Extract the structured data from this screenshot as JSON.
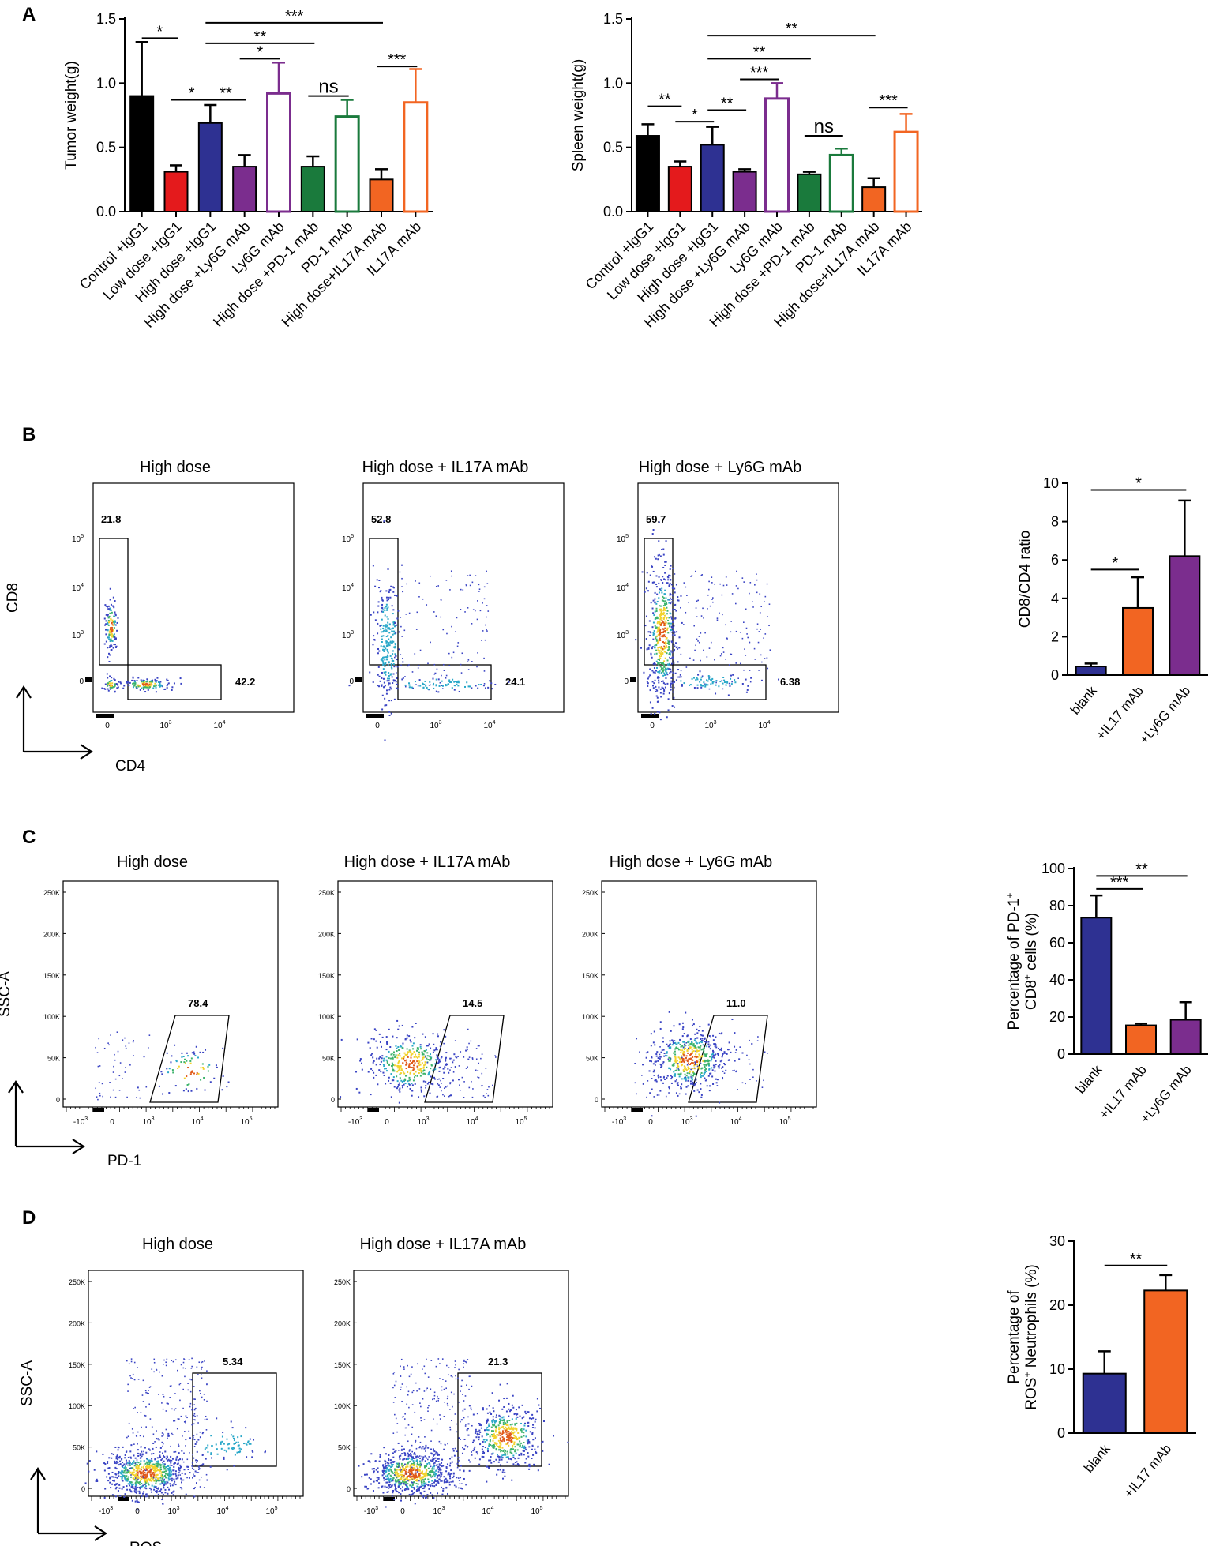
{
  "panel_labels": {
    "a": "A",
    "b": "B",
    "c": "C",
    "d": "D"
  },
  "colors": {
    "black": "#000000",
    "red": "#e41a1c",
    "blue": "#2e3192",
    "purple": "#7b2d8e",
    "green": "#1a7a3c",
    "orange": "#f26522",
    "dot_blue": "#3a44c4"
  },
  "chart_data": [
    {
      "id": "tumor",
      "type": "bar",
      "title": "",
      "xlabel": "",
      "ylabel": "Tumor weight(g)",
      "ylim": [
        0,
        1.5
      ],
      "yticks": [
        "0.0",
        "0.5",
        "1.0",
        "1.5"
      ],
      "categories": [
        "Control +IgG1",
        "Low dose +IgG1",
        "High dose +IgG1",
        "High dose +Ly6G mAb",
        "Ly6G mAb",
        "High dose +PD-1 mAb",
        "PD-1 mAb",
        "High dose+IL17A mAb",
        "IL17A mAb"
      ],
      "values": [
        0.9,
        0.31,
        0.69,
        0.35,
        0.92,
        0.35,
        0.74,
        0.25,
        0.85
      ],
      "errors": [
        0.42,
        0.05,
        0.14,
        0.09,
        0.24,
        0.08,
        0.13,
        0.08,
        0.26
      ],
      "fills": [
        "black",
        "red",
        "blue",
        "purple",
        "white",
        "green",
        "white",
        "orange",
        "white"
      ],
      "strokes": [
        "black",
        "black",
        "black",
        "black",
        "purple",
        "black",
        "green",
        "black",
        "orange"
      ],
      "annotations": [
        {
          "label": "*",
          "from": 0,
          "to": 1,
          "y": 1.35
        },
        {
          "label": "*",
          "from": 1,
          "to": 2,
          "y": 0.87
        },
        {
          "label": "**",
          "from": 2,
          "to": 3,
          "y": 0.87
        },
        {
          "label": "*",
          "from": 3,
          "to": 4,
          "y": 1.19
        },
        {
          "label": "**",
          "from": 2,
          "to": 5,
          "y": 1.31
        },
        {
          "label": "***",
          "from": 2,
          "to": 7,
          "y": 1.47
        },
        {
          "label": "ns",
          "from": 5,
          "to": 6,
          "y": 0.9
        },
        {
          "label": "***",
          "from": 7,
          "to": 8,
          "y": 1.13
        }
      ]
    },
    {
      "id": "spleen",
      "type": "bar",
      "title": "",
      "xlabel": "",
      "ylabel": "Spleen weight(g)",
      "ylim": [
        0,
        1.5
      ],
      "yticks": [
        "0.0",
        "0.5",
        "1.0",
        "1.5"
      ],
      "categories": [
        "Control +IgG1",
        "Low dose +IgG1",
        "High dose +IgG1",
        "High dose +Ly6G mAb",
        "Ly6G mAb",
        "High dose +PD-1 mAb",
        "PD-1 mAb",
        "High dose+IL17A mAb",
        "IL17A mAb"
      ],
      "values": [
        0.59,
        0.35,
        0.52,
        0.31,
        0.88,
        0.29,
        0.44,
        0.19,
        0.62
      ],
      "errors": [
        0.09,
        0.04,
        0.14,
        0.02,
        0.12,
        0.02,
        0.05,
        0.07,
        0.14
      ],
      "fills": [
        "black",
        "red",
        "blue",
        "purple",
        "white",
        "green",
        "white",
        "orange",
        "white"
      ],
      "strokes": [
        "black",
        "black",
        "black",
        "black",
        "purple",
        "black",
        "green",
        "black",
        "orange"
      ],
      "annotations": [
        {
          "label": "**",
          "from": 0,
          "to": 1,
          "y": 0.82
        },
        {
          "label": "*",
          "from": 1,
          "to": 2,
          "y": 0.7
        },
        {
          "label": "**",
          "from": 2,
          "to": 3,
          "y": 0.79
        },
        {
          "label": "***",
          "from": 3,
          "to": 4,
          "y": 1.03
        },
        {
          "label": "**",
          "from": 2,
          "to": 5,
          "y": 1.19
        },
        {
          "label": "**",
          "from": 2,
          "to": 7,
          "y": 1.37
        },
        {
          "label": "ns",
          "from": 5,
          "to": 6,
          "y": 0.59
        },
        {
          "label": "***",
          "from": 7,
          "to": 8,
          "y": 0.81
        }
      ]
    },
    {
      "id": "cd8cd4",
      "type": "bar",
      "title": "",
      "xlabel": "",
      "ylabel": "CD8/CD4 ratio",
      "ylim": [
        0,
        10
      ],
      "yticks": [
        "0",
        "2",
        "4",
        "6",
        "8",
        "10"
      ],
      "categories": [
        "blank",
        "+IL17 mAb",
        "+Ly6G mAb"
      ],
      "values": [
        0.45,
        3.5,
        6.2
      ],
      "errors": [
        0.15,
        1.6,
        2.9
      ],
      "fills": [
        "blue",
        "orange",
        "purple"
      ],
      "strokes": [
        "black",
        "black",
        "black"
      ],
      "annotations": [
        {
          "label": "*",
          "from": 0,
          "to": 1,
          "y": 5.5
        },
        {
          "label": "*",
          "from": 0,
          "to": 2,
          "y": 9.65
        }
      ]
    },
    {
      "id": "pd1",
      "type": "bar",
      "title": "",
      "xlabel": "",
      "ylabel_line1": "Percentage of PD-1",
      "ylabel_line2": "CD8",
      "ylabel_line2_suffix": "cells (%)",
      "superscript": "+",
      "ylim": [
        0,
        100
      ],
      "yticks": [
        "0",
        "20",
        "40",
        "60",
        "80",
        "100"
      ],
      "categories": [
        "blank",
        "+IL17 mAb",
        "+Ly6G mAb"
      ],
      "values": [
        73.5,
        15.5,
        18.5
      ],
      "errors": [
        12,
        1,
        9.5
      ],
      "fills": [
        "blue",
        "orange",
        "purple"
      ],
      "strokes": [
        "black",
        "black",
        "black"
      ],
      "annotations": [
        {
          "label": "***",
          "from": 0,
          "to": 1,
          "y": 89
        },
        {
          "label": "**",
          "from": 0,
          "to": 2,
          "y": 96
        }
      ]
    },
    {
      "id": "ros",
      "type": "bar",
      "title": "",
      "xlabel": "",
      "ylabel_line1": "Percentage of",
      "ylabel_line2": "ROS",
      "ylabel_line2_suffix": "Neutrophils (%)",
      "superscript": "+",
      "ylim": [
        0,
        30
      ],
      "yticks": [
        "0",
        "10",
        "20",
        "30"
      ],
      "categories": [
        "blank",
        "+IL17 mAb"
      ],
      "values": [
        9.3,
        22.3
      ],
      "errors": [
        3.5,
        2.4
      ],
      "fills": [
        "blue",
        "orange"
      ],
      "strokes": [
        "black",
        "black"
      ],
      "annotations": [
        {
          "label": "**",
          "from": 0,
          "to": 1,
          "y": 26.2
        }
      ]
    },
    {
      "id": "flow",
      "type": "scatter",
      "title": "",
      "xlabel": "",
      "ylabel": "",
      "rows": [
        {
          "id": "B",
          "titles": [
            "High dose",
            "High dose + IL17A mAb",
            "High dose + Ly6G mAb"
          ],
          "gates": [
            [
              "21.8",
              "42.2"
            ],
            [
              "52.8",
              "24.1"
            ],
            [
              "59.7",
              "6.38"
            ]
          ],
          "xticks": [
            "0",
            "10",
            "10"
          ],
          "xtick_exps": [
            "",
            "3",
            "4"
          ],
          "yticks": [
            "0",
            "10",
            "10",
            "10"
          ],
          "ytick_exps": [
            "",
            "3",
            "4",
            "5"
          ],
          "axis_y": "CD8",
          "axis_x": "CD4"
        },
        {
          "id": "C",
          "titles": [
            "High dose",
            "High dose + IL17A mAb",
            "High dose + Ly6G mAb"
          ],
          "gates": [
            [
              "78.4"
            ],
            [
              "14.5"
            ],
            [
              "11.0"
            ]
          ],
          "xticks": [
            "-10",
            "0",
            "10",
            "10",
            "10"
          ],
          "xtick_exps": [
            "3",
            "",
            "3",
            "4",
            "5"
          ],
          "yticks": [
            "0",
            "50K",
            "100K",
            "150K",
            "200K",
            "250K"
          ],
          "axis_y": "SSC-A",
          "axis_x": "PD-1"
        },
        {
          "id": "D",
          "titles": [
            "High dose",
            "High dose + IL17A mAb"
          ],
          "gates": [
            [
              "5.34"
            ],
            [
              "21.3"
            ]
          ],
          "xticks": [
            "-10",
            "0",
            "10",
            "10",
            "10"
          ],
          "xtick_exps": [
            "3",
            "",
            "3",
            "4",
            "5"
          ],
          "yticks": [
            "0",
            "50K",
            "100K",
            "150K",
            "200K",
            "250K"
          ],
          "axis_y": "SSC-A",
          "axis_x": "ROS"
        }
      ]
    }
  ]
}
